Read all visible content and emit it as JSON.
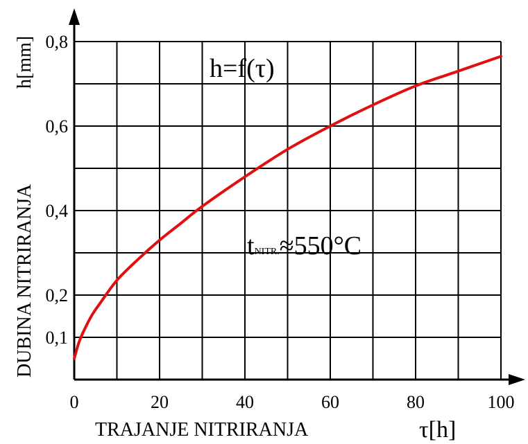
{
  "chart_data": {
    "type": "line",
    "title": "h=f(τ)",
    "annotation": {
      "main_a": "t",
      "subscript": "NITR.",
      "main_b": "≈550°C"
    },
    "xlabel": "TRAJANJE NITRIRANJA",
    "xunit": "τ[h]",
    "ylabel": "DUBINA NITRIRANJA",
    "yunit": "h[mm]",
    "xlim": [
      0,
      100
    ],
    "ylim": [
      0,
      0.8
    ],
    "x_ticks": [
      0,
      20,
      40,
      60,
      80,
      100
    ],
    "x_tick_labels": [
      "0",
      "20",
      "40",
      "60",
      "80",
      "100"
    ],
    "y_ticks": [
      0.1,
      0.2,
      0.4,
      0.6,
      0.8
    ],
    "y_tick_labels": [
      "0,1",
      "0,2",
      "0,4",
      "0,6",
      "0,8"
    ],
    "grid": true,
    "series_color": "#e01010",
    "series": [
      {
        "x": [
          0,
          1,
          2,
          4,
          6,
          10,
          15,
          20,
          25,
          30,
          40,
          50,
          60,
          70,
          80,
          90,
          100
        ],
        "values": [
          0.05,
          0.085,
          0.11,
          0.15,
          0.18,
          0.235,
          0.285,
          0.33,
          0.37,
          0.41,
          0.48,
          0.545,
          0.6,
          0.65,
          0.695,
          0.73,
          0.765
        ]
      }
    ]
  }
}
